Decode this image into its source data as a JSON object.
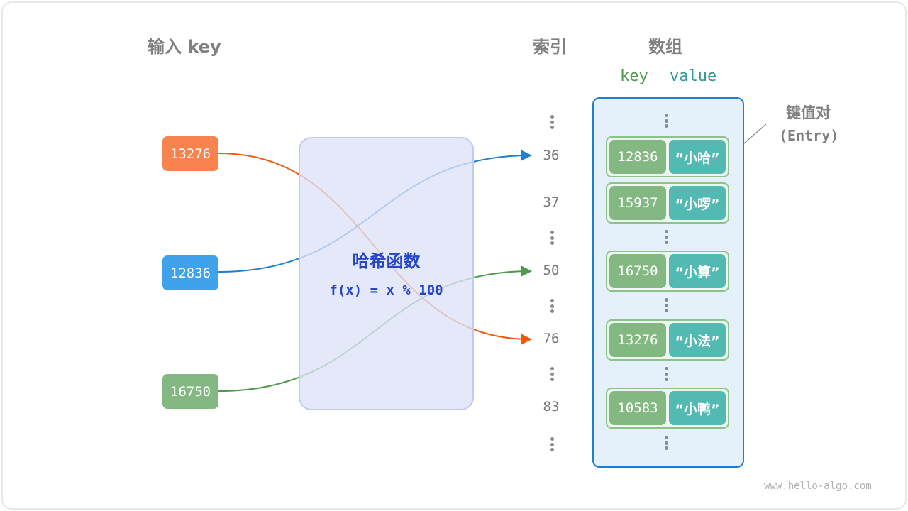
{
  "headers": {
    "input_key": "输入 key",
    "index": "索引",
    "array": "数组",
    "key": "key",
    "value": "value"
  },
  "inputs": [
    {
      "key": "13276",
      "color": "#f8834f"
    },
    {
      "key": "12836",
      "color": "#3fa2ea"
    },
    {
      "key": "16750",
      "color": "#84b882"
    }
  ],
  "hash_function": {
    "title": "哈希函数",
    "formula": "f(x) = x % 100"
  },
  "indices": [
    "36",
    "37",
    "50",
    "76",
    "83"
  ],
  "entries": [
    {
      "key": "12836",
      "value": "“小哈”"
    },
    {
      "key": "15937",
      "value": "“小啰”"
    },
    {
      "key": "16750",
      "value": "“小算”"
    },
    {
      "key": "13276",
      "value": "“小法”"
    },
    {
      "key": "10583",
      "value": "“小鸭”"
    }
  ],
  "annotation": {
    "label": "键值对",
    "sub": "(Entry)"
  },
  "watermark": "www.hello-algo.com",
  "colors": {
    "orange": "#f05a10",
    "blue": "#1f7fd0",
    "green": "#4f9a4f",
    "hash_text": "#2646c8"
  }
}
